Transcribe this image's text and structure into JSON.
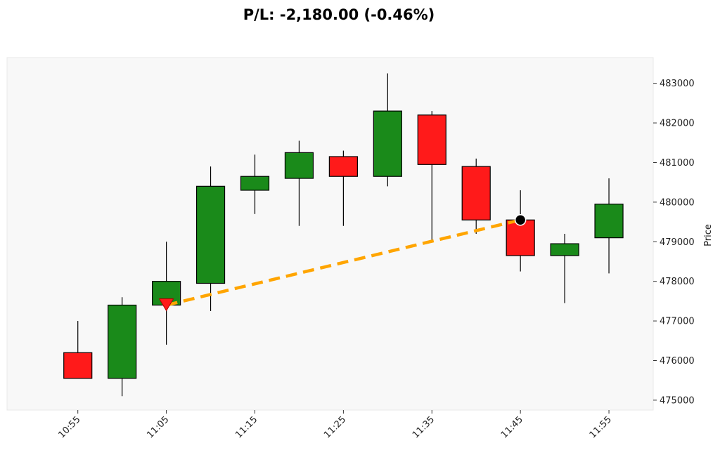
{
  "chart_data": {
    "type": "candlestick",
    "title": "P/L: -2,180.00 (-0.46%)",
    "ylabel": "Price",
    "xlabel": "",
    "ylim": [
      474750,
      483650
    ],
    "y_ticks": [
      475000,
      476000,
      477000,
      478000,
      479000,
      480000,
      481000,
      482000,
      483000
    ],
    "y_tick_labels": [
      "475000",
      "476000",
      "477000",
      "478000",
      "479000",
      "480000",
      "481000",
      "482000",
      "483000"
    ],
    "x_ticks": [
      "10:55",
      "11:05",
      "11:15",
      "11:25",
      "11:35",
      "11:45",
      "11:55"
    ],
    "x_range": [
      "10:47",
      "12:00"
    ],
    "y_axis_side": "right",
    "grid": false,
    "background": "#f8f8f8",
    "colors": {
      "up": "#1a8a1a",
      "down": "#ff1a1a",
      "trade_line": "#ffa500",
      "entry_marker": "#ff1a1a",
      "exit_marker": "#000000"
    },
    "candles": [
      {
        "time": "10:55",
        "open": 476200,
        "high": 477000,
        "low": 475550,
        "close": 475550
      },
      {
        "time": "11:00",
        "open": 475550,
        "high": 477600,
        "low": 475100,
        "close": 477400
      },
      {
        "time": "11:05",
        "open": 477400,
        "high": 479000,
        "low": 476400,
        "close": 478000
      },
      {
        "time": "11:10",
        "open": 477950,
        "high": 480900,
        "low": 477250,
        "close": 480400
      },
      {
        "time": "11:15",
        "open": 480300,
        "high": 481200,
        "low": 479700,
        "close": 480650
      },
      {
        "time": "11:20",
        "open": 480600,
        "high": 481550,
        "low": 479400,
        "close": 481250
      },
      {
        "time": "11:25",
        "open": 481150,
        "high": 481300,
        "low": 479400,
        "close": 480650
      },
      {
        "time": "11:30",
        "open": 480650,
        "high": 483250,
        "low": 480400,
        "close": 482300
      },
      {
        "time": "11:35",
        "open": 482200,
        "high": 482300,
        "low": 479050,
        "close": 480950
      },
      {
        "time": "11:40",
        "open": 480900,
        "high": 481100,
        "low": 479200,
        "close": 479550
      },
      {
        "time": "11:45",
        "open": 479550,
        "high": 480300,
        "low": 478250,
        "close": 478650
      },
      {
        "time": "11:50",
        "open": 478650,
        "high": 479200,
        "low": 477450,
        "close": 478950
      },
      {
        "time": "11:55",
        "open": 479100,
        "high": 480600,
        "low": 478200,
        "close": 479950
      }
    ],
    "trade": {
      "entry": {
        "time": "11:05",
        "price": 477400
      },
      "exit": {
        "time": "11:45",
        "price": 479550
      }
    }
  }
}
